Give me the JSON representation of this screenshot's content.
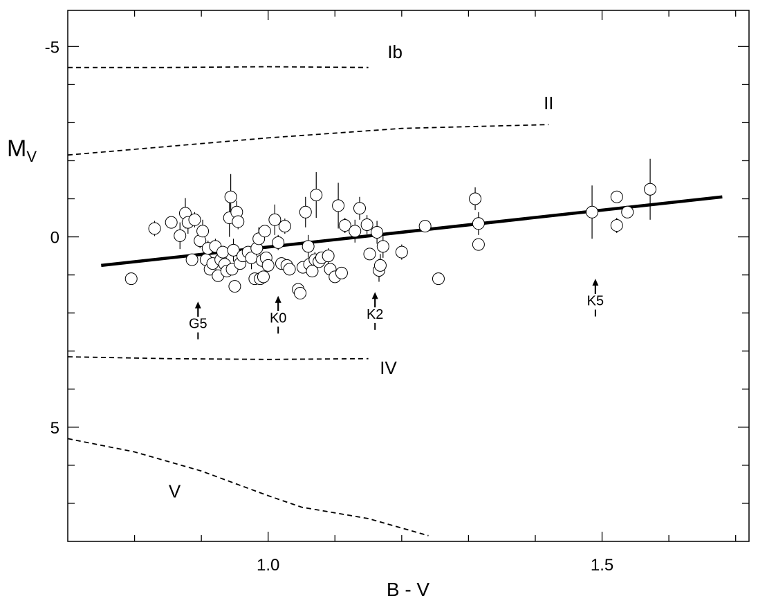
{
  "chart_data": {
    "type": "scatter",
    "xlabel": "B - V",
    "ylabel": "M",
    "ylabel_sub": "V",
    "xlim": [
      0.7,
      1.72
    ],
    "ylim": [
      8.0,
      -5.95
    ],
    "y_inverted": true,
    "x_ticks": [
      0.8,
      0.9,
      1.0,
      1.1,
      1.2,
      1.3,
      1.4,
      1.5,
      1.6,
      1.7
    ],
    "x_tick_labels": [
      {
        "value": 1.0,
        "label": "1.0"
      },
      {
        "value": 1.5,
        "label": "1.5"
      }
    ],
    "y_ticks": [
      -5,
      -4,
      -3,
      -2,
      -1,
      0,
      1,
      2,
      3,
      4,
      5,
      6,
      7
    ],
    "y_tick_labels": [
      {
        "value": -5,
        "label": "-5"
      },
      {
        "value": 0,
        "label": "0"
      },
      {
        "value": 5,
        "label": "5"
      }
    ],
    "grid": false,
    "legend": "none",
    "luminosity_classes": [
      {
        "label": "Ib",
        "label_at": [
          1.19,
          -4.7
        ],
        "points": [
          [
            0.7,
            -4.45
          ],
          [
            0.85,
            -4.45
          ],
          [
            1.0,
            -4.47
          ],
          [
            1.15,
            -4.45
          ]
        ]
      },
      {
        "label": "II",
        "label_at": [
          1.42,
          -3.35
        ],
        "points": [
          [
            0.7,
            -2.15
          ],
          [
            1.0,
            -2.6
          ],
          [
            1.2,
            -2.85
          ],
          [
            1.42,
            -2.95
          ]
        ]
      },
      {
        "label": "IV",
        "label_at": [
          1.18,
          3.6
        ],
        "points": [
          [
            0.7,
            3.15
          ],
          [
            0.85,
            3.2
          ],
          [
            1.0,
            3.22
          ],
          [
            1.15,
            3.2
          ]
        ]
      },
      {
        "label": "V",
        "label_at": [
          0.86,
          6.85
        ],
        "points": [
          [
            0.7,
            5.3
          ],
          [
            0.8,
            5.65
          ],
          [
            0.9,
            6.15
          ],
          [
            1.0,
            6.8
          ],
          [
            1.05,
            7.1
          ],
          [
            1.15,
            7.4
          ],
          [
            1.24,
            7.85
          ]
        ]
      }
    ],
    "fit_line": {
      "points": [
        [
          0.75,
          0.75
        ],
        [
          1.68,
          -1.05
        ]
      ]
    },
    "spectral_markers": [
      {
        "label": "G5",
        "x": 0.895,
        "y_tip": 1.7,
        "y_label": 2.4
      },
      {
        "label": "K0",
        "x": 1.015,
        "y_tip": 1.55,
        "y_label": 2.25
      },
      {
        "label": "K2",
        "x": 1.16,
        "y_tip": 1.45,
        "y_label": 2.15
      },
      {
        "label": "K5",
        "x": 1.49,
        "y_tip": 1.1,
        "y_label": 1.8
      }
    ],
    "stars": [
      {
        "x": 0.795,
        "y": 1.1,
        "e": 0
      },
      {
        "x": 0.83,
        "y": -0.22,
        "e": 0.2
      },
      {
        "x": 0.855,
        "y": -0.38,
        "e": 0
      },
      {
        "x": 0.868,
        "y": -0.03,
        "e": 0.35
      },
      {
        "x": 0.876,
        "y": -0.62,
        "e": 0.4
      },
      {
        "x": 0.88,
        "y": -0.38,
        "e": 0.3
      },
      {
        "x": 0.886,
        "y": 0.6,
        "e": 0
      },
      {
        "x": 0.89,
        "y": -0.45,
        "e": 0.2
      },
      {
        "x": 0.898,
        "y": 0.1,
        "e": 0.2
      },
      {
        "x": 0.902,
        "y": -0.15,
        "e": 0.3
      },
      {
        "x": 0.907,
        "y": 0.6,
        "e": 0
      },
      {
        "x": 0.91,
        "y": 0.3,
        "e": 0.2
      },
      {
        "x": 0.913,
        "y": 0.85,
        "e": 0
      },
      {
        "x": 0.917,
        "y": 0.7,
        "e": 0
      },
      {
        "x": 0.921,
        "y": 0.25,
        "e": 0.2
      },
      {
        "x": 0.925,
        "y": 1.02,
        "e": 0
      },
      {
        "x": 0.929,
        "y": 0.6,
        "e": 0.2
      },
      {
        "x": 0.932,
        "y": 0.4,
        "e": 0
      },
      {
        "x": 0.935,
        "y": 0.72,
        "e": 0
      },
      {
        "x": 0.938,
        "y": 0.9,
        "e": 0
      },
      {
        "x": 0.942,
        "y": -0.5,
        "e": 0.5
      },
      {
        "x": 0.944,
        "y": -1.05,
        "e": 0.6
      },
      {
        "x": 0.946,
        "y": 0.85,
        "e": 0
      },
      {
        "x": 0.948,
        "y": 0.35,
        "e": 0.3
      },
      {
        "x": 0.95,
        "y": 1.3,
        "e": 0
      },
      {
        "x": 0.953,
        "y": -0.65,
        "e": 0.3
      },
      {
        "x": 0.955,
        "y": -0.4,
        "e": 0.2
      },
      {
        "x": 0.958,
        "y": 0.7,
        "e": 0
      },
      {
        "x": 0.962,
        "y": 0.5,
        "e": 0
      },
      {
        "x": 0.97,
        "y": 0.4,
        "e": 0
      },
      {
        "x": 0.975,
        "y": 0.55,
        "e": 0.3
      },
      {
        "x": 0.98,
        "y": 1.1,
        "e": 0
      },
      {
        "x": 0.983,
        "y": 0.3,
        "e": 0
      },
      {
        "x": 0.986,
        "y": 0.05,
        "e": 0.3
      },
      {
        "x": 0.988,
        "y": 1.1,
        "e": 0
      },
      {
        "x": 0.991,
        "y": 0.62,
        "e": 0
      },
      {
        "x": 0.993,
        "y": 1.05,
        "e": 0
      },
      {
        "x": 0.995,
        "y": -0.15,
        "e": 0
      },
      {
        "x": 0.997,
        "y": 0.55,
        "e": 0
      },
      {
        "x": 1.0,
        "y": 0.75,
        "e": 0
      },
      {
        "x": 1.01,
        "y": -0.45,
        "e": 0.4
      },
      {
        "x": 1.015,
        "y": 0.15,
        "e": 0.2
      },
      {
        "x": 1.02,
        "y": 0.7,
        "e": 0
      },
      {
        "x": 1.025,
        "y": -0.28,
        "e": 0.2
      },
      {
        "x": 1.028,
        "y": 0.75,
        "e": 0
      },
      {
        "x": 1.032,
        "y": 0.85,
        "e": 0
      },
      {
        "x": 1.045,
        "y": 1.38,
        "e": 0
      },
      {
        "x": 1.048,
        "y": 1.48,
        "e": 0
      },
      {
        "x": 1.052,
        "y": 0.8,
        "e": 0
      },
      {
        "x": 1.056,
        "y": -0.65,
        "e": 0.4
      },
      {
        "x": 1.06,
        "y": 0.25,
        "e": 0.3
      },
      {
        "x": 1.062,
        "y": 0.72,
        "e": 0
      },
      {
        "x": 1.066,
        "y": 0.9,
        "e": 0
      },
      {
        "x": 1.07,
        "y": 0.6,
        "e": 0.2
      },
      {
        "x": 1.072,
        "y": -1.1,
        "e": 0.6
      },
      {
        "x": 1.076,
        "y": 0.65,
        "e": 0
      },
      {
        "x": 1.08,
        "y": 0.55,
        "e": 0
      },
      {
        "x": 1.09,
        "y": 0.5,
        "e": 0.2
      },
      {
        "x": 1.093,
        "y": 0.85,
        "e": 0
      },
      {
        "x": 1.1,
        "y": 1.05,
        "e": 0
      },
      {
        "x": 1.105,
        "y": -0.82,
        "e": 0.6
      },
      {
        "x": 1.11,
        "y": 0.95,
        "e": 0
      },
      {
        "x": 1.115,
        "y": -0.3,
        "e": 0.2
      },
      {
        "x": 1.13,
        "y": -0.15,
        "e": 0.3
      },
      {
        "x": 1.137,
        "y": -0.75,
        "e": 0.3
      },
      {
        "x": 1.148,
        "y": -0.32,
        "e": 0.25
      },
      {
        "x": 1.152,
        "y": 0.45,
        "e": 0
      },
      {
        "x": 1.163,
        "y": -0.12,
        "e": 0.3
      },
      {
        "x": 1.166,
        "y": 0.88,
        "e": 0.3
      },
      {
        "x": 1.168,
        "y": 0.75,
        "e": 0.3
      },
      {
        "x": 1.172,
        "y": 0.25,
        "e": 0.3
      },
      {
        "x": 1.2,
        "y": 0.4,
        "e": 0.2
      },
      {
        "x": 1.235,
        "y": -0.28,
        "e": 0
      },
      {
        "x": 1.255,
        "y": 1.1,
        "e": 0
      },
      {
        "x": 1.31,
        "y": -1.0,
        "e": 0.3
      },
      {
        "x": 1.315,
        "y": -0.35,
        "e": 0.3
      },
      {
        "x": 1.315,
        "y": 0.2,
        "e": 0
      },
      {
        "x": 1.485,
        "y": -0.65,
        "e": 0.7
      },
      {
        "x": 1.522,
        "y": -1.05,
        "e": 0.15
      },
      {
        "x": 1.522,
        "y": -0.3,
        "e": 0.2
      },
      {
        "x": 1.538,
        "y": -0.65,
        "e": 0
      },
      {
        "x": 1.572,
        "y": -1.25,
        "e": 0.8
      }
    ]
  }
}
